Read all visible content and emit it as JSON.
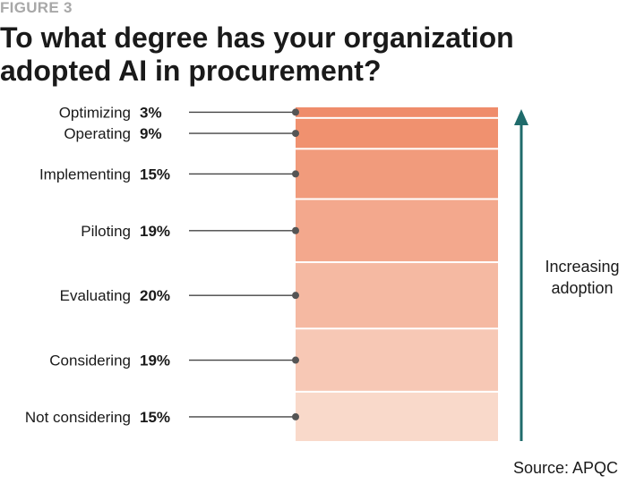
{
  "figure_label": "FIGURE 3",
  "title_lines": [
    "To what degree has your organization",
    "adopted AI in procurement?"
  ],
  "source": "Source: APQC",
  "arrow_label_lines": [
    "Increasing",
    "adoption"
  ],
  "colors": {
    "arrow": "#1f6b6b",
    "leader": "#444444",
    "dot": "#555555",
    "bar_shades": [
      "#ef8c6b",
      "#f0916f",
      "#f19b7c",
      "#f3a88d",
      "#f5b9a2",
      "#f7c8b5",
      "#f9d9ca"
    ]
  },
  "chart_data": {
    "type": "bar",
    "orientation": "stacked-vertical",
    "categories": [
      "Optimizing",
      "Operating",
      "Implementing",
      "Piloting",
      "Evaluating",
      "Considering",
      "Not considering"
    ],
    "values": [
      3,
      9,
      15,
      19,
      20,
      19,
      15
    ],
    "value_labels": [
      "3%",
      "9%",
      "15%",
      "19%",
      "20%",
      "19%",
      "15%"
    ],
    "unit": "%",
    "title": "To what degree has your organization adopted AI in procurement?"
  }
}
